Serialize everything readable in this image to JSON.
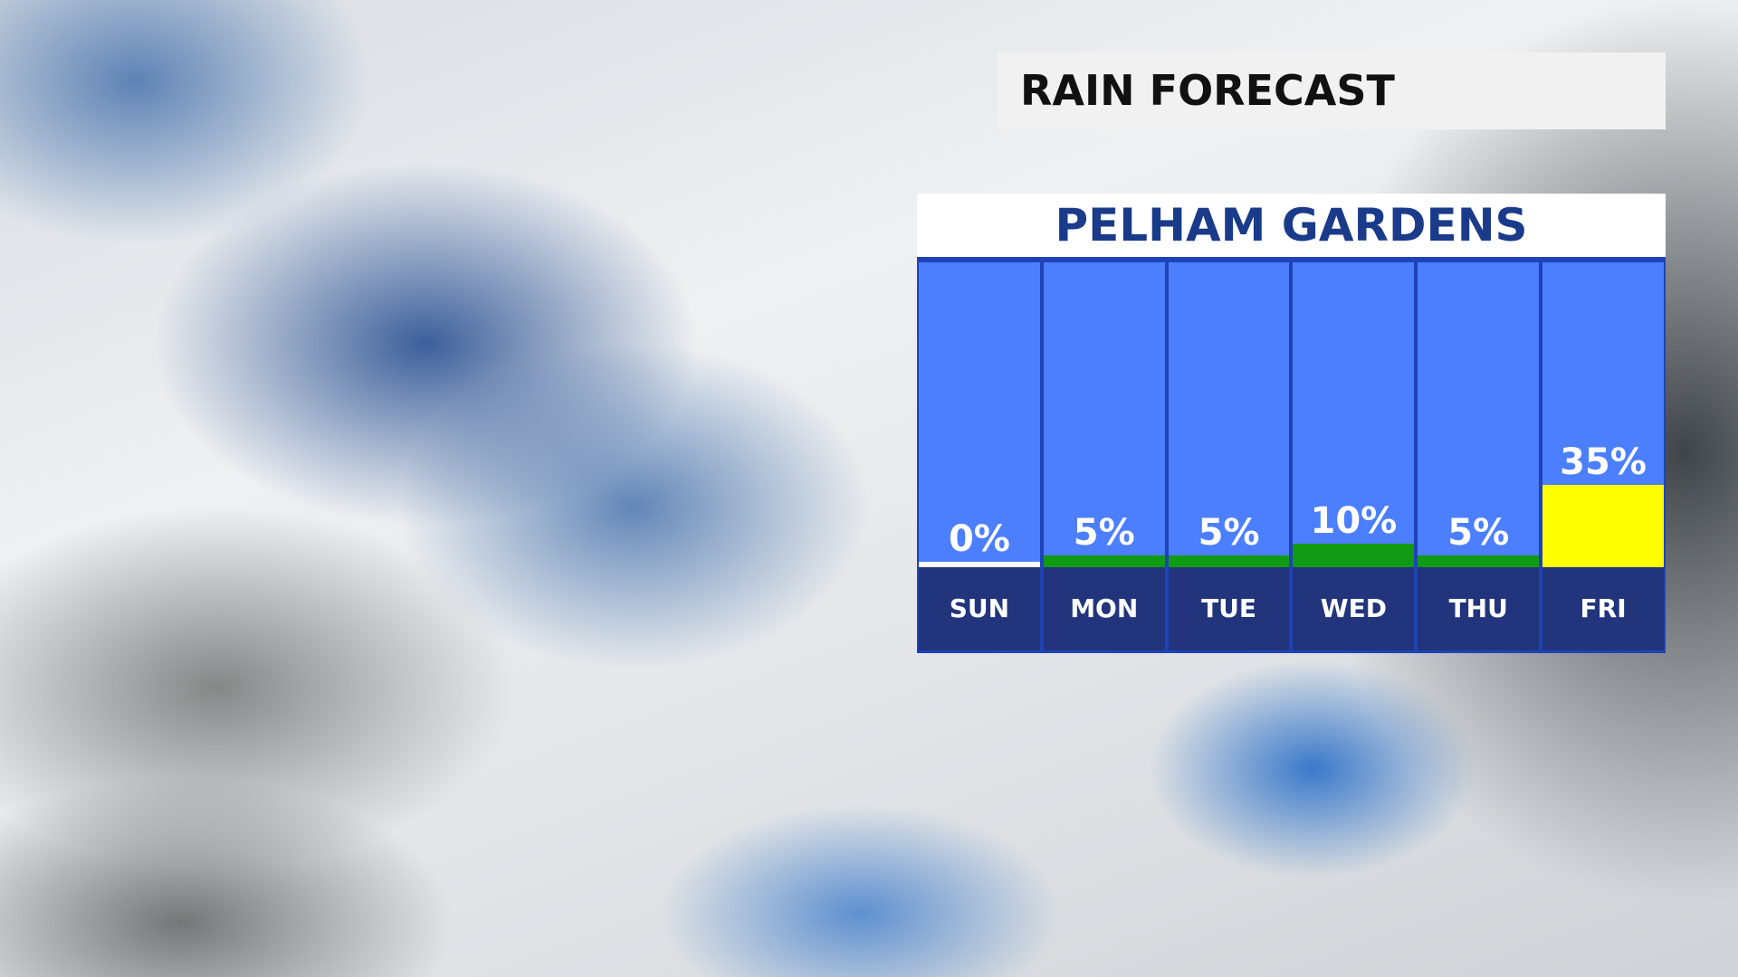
{
  "header": {
    "title": "RAIN FORECAST"
  },
  "chart_data": {
    "type": "bar",
    "title": "PELHAM GARDENS",
    "categories": [
      "SUN",
      "MON",
      "TUE",
      "WED",
      "THU",
      "FRI"
    ],
    "values": [
      0,
      5,
      5,
      10,
      5,
      35
    ],
    "value_labels": [
      "0%",
      "5%",
      "5%",
      "10%",
      "5%",
      "35%"
    ],
    "colors": [
      "#ffffff",
      "#119a14",
      "#119a14",
      "#119a14",
      "#119a14",
      "#ffff00"
    ]
  }
}
